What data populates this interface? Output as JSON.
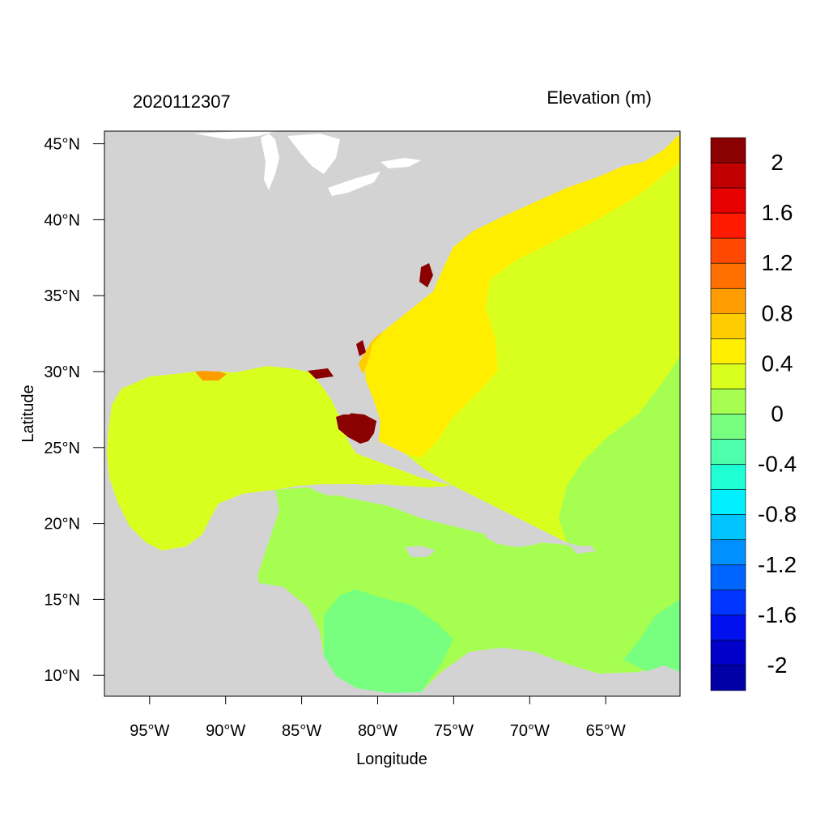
{
  "header": {
    "timestamp": "2020112307",
    "variable_title": "Elevation (m)"
  },
  "axes": {
    "xlabel": "Longitude",
    "ylabel": "Latitude",
    "x_ticks": [
      {
        "value": -95,
        "label": "95°W"
      },
      {
        "value": -90,
        "label": "90°W"
      },
      {
        "value": -85,
        "label": "85°W"
      },
      {
        "value": -80,
        "label": "80°W"
      },
      {
        "value": -75,
        "label": "75°W"
      },
      {
        "value": -70,
        "label": "70°W"
      },
      {
        "value": -65,
        "label": "65°W"
      }
    ],
    "y_ticks": [
      {
        "value": 45,
        "label": "45°N"
      },
      {
        "value": 40,
        "label": "40°N"
      },
      {
        "value": 35,
        "label": "35°N"
      },
      {
        "value": 30,
        "label": "30°N"
      },
      {
        "value": 25,
        "label": "25°N"
      },
      {
        "value": 20,
        "label": "20°N"
      },
      {
        "value": 15,
        "label": "15°N"
      },
      {
        "value": 10,
        "label": "10°N"
      }
    ]
  },
  "colorbar": {
    "labels": [
      "2",
      "1.6",
      "1.2",
      "0.8",
      "0.4",
      "0",
      "-0.4",
      "-0.8",
      "-1.2",
      "-1.6",
      "-2"
    ],
    "colors": [
      "#8b0000",
      "#c00000",
      "#e60000",
      "#ff1a00",
      "#ff4800",
      "#ff7000",
      "#ff9c00",
      "#ffcc00",
      "#ffee00",
      "#d9ff1f",
      "#a6ff50",
      "#78ff80",
      "#4dffaa",
      "#1effd6",
      "#00f0ff",
      "#00c4ff",
      "#0090ff",
      "#0064ff",
      "#0035ff",
      "#0010ee",
      "#0000c8",
      "#0000a6"
    ]
  },
  "map": {
    "land_color": "#d3d3d3",
    "water_color": "#ffffff",
    "projection": "cylindrical equidistant"
  }
}
